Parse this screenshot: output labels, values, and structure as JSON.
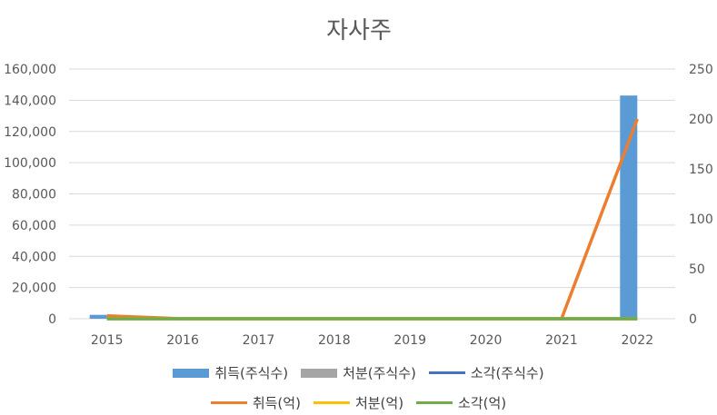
{
  "chart_data": {
    "type": "bar",
    "title": "자사주",
    "categories": [
      "2015",
      "2016",
      "2017",
      "2018",
      "2019",
      "2020",
      "2021",
      "2022"
    ],
    "y_left": {
      "ylim": [
        0,
        160000
      ],
      "ticks": [
        0,
        20000,
        40000,
        60000,
        80000,
        100000,
        120000,
        140000,
        160000
      ],
      "tick_labels": [
        "0",
        "20,000",
        "40,000",
        "60,000",
        "80,000",
        "100,000",
        "120,000",
        "140,000",
        "160,000"
      ]
    },
    "y_right": {
      "ylim": [
        0,
        250
      ],
      "ticks": [
        0,
        50,
        100,
        150,
        200,
        250
      ],
      "tick_labels": [
        "0",
        "50",
        "100",
        "150",
        "200",
        "250"
      ]
    },
    "grid": true,
    "legend_position": "bottom",
    "series": [
      {
        "name": "취득(주식수)",
        "type": "bar",
        "axis": "left",
        "color": "#5B9BD5",
        "values": [
          2500,
          0,
          0,
          0,
          0,
          0,
          0,
          143000
        ]
      },
      {
        "name": "처분(주식수)",
        "type": "bar",
        "axis": "left",
        "color": "#A5A5A5",
        "values": [
          0,
          0,
          0,
          0,
          0,
          0,
          0,
          0
        ]
      },
      {
        "name": "소각(주식수)",
        "type": "line",
        "axis": "left",
        "color": "#4472C4",
        "values": [
          0,
          0,
          0,
          0,
          0,
          0,
          0,
          0
        ]
      },
      {
        "name": "취득(억)",
        "type": "line",
        "axis": "right",
        "color": "#ED7D31",
        "values": [
          3,
          0,
          0,
          0,
          0,
          0,
          0,
          200
        ]
      },
      {
        "name": "처분(억)",
        "type": "line",
        "axis": "right",
        "color": "#FFC000",
        "values": [
          0,
          0,
          0,
          0,
          0,
          0,
          0,
          0
        ]
      },
      {
        "name": "소각(억)",
        "type": "line",
        "axis": "right",
        "color": "#70AD47",
        "values": [
          0,
          0,
          0,
          0,
          0,
          0,
          0,
          0
        ]
      }
    ]
  }
}
